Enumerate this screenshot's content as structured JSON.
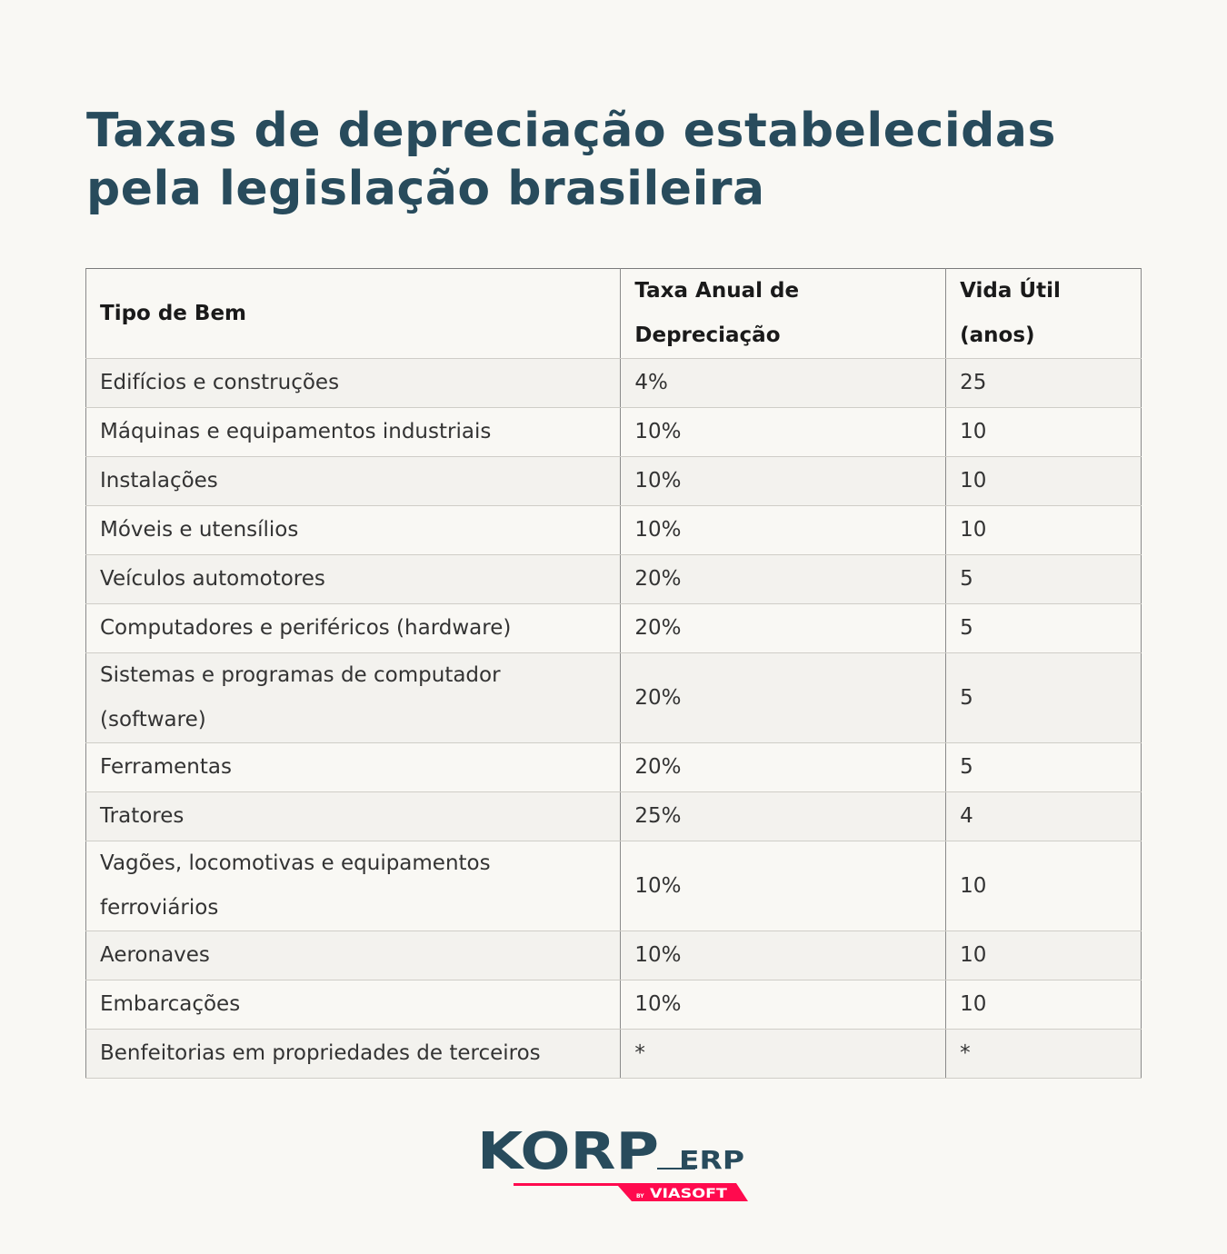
{
  "title": "Taxas de depreciação estabelecidas pela legislação brasileira",
  "table": {
    "headers": [
      "Tipo de Bem",
      "Taxa Anual de Depreciação",
      "Vida Útil (anos)"
    ],
    "rows": [
      [
        "Edifícios e construções",
        "4%",
        "25"
      ],
      [
        "Máquinas e equipamentos industriais",
        "10%",
        "10"
      ],
      [
        "Instalações",
        "10%",
        "10"
      ],
      [
        "Móveis e utensílios",
        "10%",
        "10"
      ],
      [
        "Veículos automotores",
        "20%",
        "5"
      ],
      [
        "Computadores e periféricos (hardware)",
        "20%",
        "5"
      ],
      [
        "Sistemas e programas de computador (software)",
        "20%",
        "5"
      ],
      [
        "Ferramentas",
        "20%",
        "5"
      ],
      [
        "Tratores",
        "25%",
        "4"
      ],
      [
        "Vagões, locomotivas e equipamentos ferroviários",
        "10%",
        "10"
      ],
      [
        "Aeronaves",
        "10%",
        "10"
      ],
      [
        "Embarcações",
        "10%",
        "10"
      ],
      [
        "Benfeitorias em propriedades de terceiros",
        "*",
        "*"
      ]
    ]
  },
  "logo": {
    "text": "KORP ERP",
    "tagline": "BY VIASOFT",
    "brand_color": "#284b5c",
    "accent_color": "#ff0a4e"
  }
}
